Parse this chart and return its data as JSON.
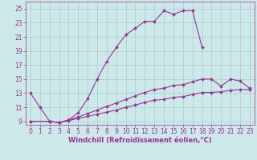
{
  "xlabel": "Windchill (Refroidissement éolien,°C)",
  "background_color": "#cce8e8",
  "line_color": "#993399",
  "xlim": [
    -0.5,
    23.5
  ],
  "ylim": [
    8.5,
    26
  ],
  "yticks": [
    9,
    11,
    13,
    15,
    17,
    19,
    21,
    23,
    25
  ],
  "xticks": [
    0,
    1,
    2,
    3,
    4,
    5,
    6,
    7,
    8,
    9,
    10,
    11,
    12,
    13,
    14,
    15,
    16,
    17,
    18,
    19,
    20,
    21,
    22,
    23
  ],
  "series1_x": [
    0,
    1,
    2,
    3,
    4,
    5,
    6,
    7,
    8,
    9,
    10,
    11,
    12,
    13,
    14,
    15,
    16,
    17,
    18
  ],
  "series1_y": [
    13,
    11,
    9,
    8.8,
    9.2,
    10.2,
    12.2,
    15,
    17.5,
    19.5,
    21.3,
    22.2,
    23.2,
    23.2,
    24.7,
    24.2,
    24.7,
    24.7,
    19.5
  ],
  "series2_x": [
    0,
    2,
    3,
    4,
    5,
    6,
    7,
    8,
    9,
    10,
    11,
    12,
    13,
    14,
    15,
    16,
    17,
    18,
    19,
    20,
    21,
    22,
    23
  ],
  "series2_y": [
    9,
    9,
    8.8,
    9.2,
    9.6,
    10.1,
    10.6,
    11.1,
    11.6,
    12.1,
    12.6,
    13.1,
    13.5,
    13.7,
    14.1,
    14.2,
    14.6,
    15.0,
    15.0,
    14.0,
    15.0,
    14.7,
    13.7
  ],
  "series3_x": [
    0,
    2,
    3,
    4,
    5,
    6,
    7,
    8,
    9,
    10,
    11,
    12,
    13,
    14,
    15,
    16,
    17,
    18,
    19,
    20,
    21,
    22,
    23
  ],
  "series3_y": [
    9,
    9,
    8.8,
    9.1,
    9.4,
    9.7,
    10.0,
    10.3,
    10.6,
    11.0,
    11.3,
    11.7,
    12.0,
    12.1,
    12.4,
    12.5,
    12.8,
    13.1,
    13.1,
    13.2,
    13.4,
    13.5,
    13.5
  ],
  "grid_color": "#aacccc",
  "grid_lw": 0.5,
  "tick_fontsize": 5.5,
  "label_fontsize": 6.0,
  "line_width": 0.8,
  "marker_size": 2.0
}
